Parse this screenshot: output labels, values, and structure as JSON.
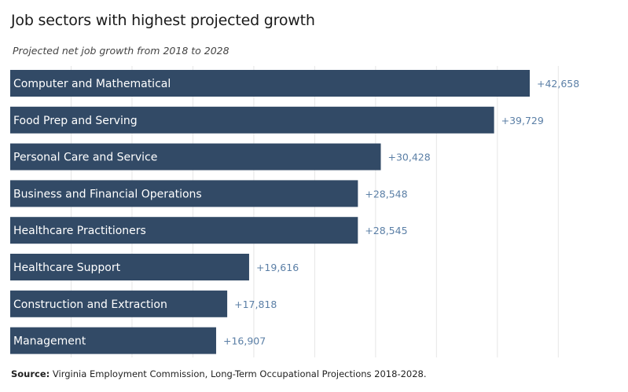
{
  "title": "Job sectors with highest projected growth",
  "subtitle": "Projected net job growth from 2018 to 2028",
  "source_label": "Source:",
  "source_text": "Virginia Employment Commission, Long-Term Occupational Projections 2018-2028.",
  "colors": {
    "bar": "#324a66",
    "value": "#5b7fa6",
    "grid": "#e6e6e6"
  },
  "chart_data": {
    "type": "bar",
    "orientation": "horizontal",
    "title": "Job sectors with highest projected growth",
    "subtitle": "Projected net job growth from 2018 to 2028",
    "categories": [
      "Computer and Mathematical",
      "Food Prep and Serving",
      "Personal Care and Service",
      "Business and Financial Operations",
      "Healthcare Practitioners",
      "Healthcare Support",
      "Construction and Extraction",
      "Management"
    ],
    "values": [
      42658,
      39729,
      30428,
      28548,
      28545,
      19616,
      17818,
      16907
    ],
    "value_labels": [
      "+42,658",
      "+39,729",
      "+30,428",
      "+28,548",
      "+28,545",
      "+19,616",
      "+17,818",
      "+16,907"
    ],
    "xlim": [
      0,
      45000
    ],
    "grid": true,
    "gridlines": [
      5000,
      10000,
      15000,
      20000,
      25000,
      30000,
      35000,
      40000,
      45000
    ]
  }
}
